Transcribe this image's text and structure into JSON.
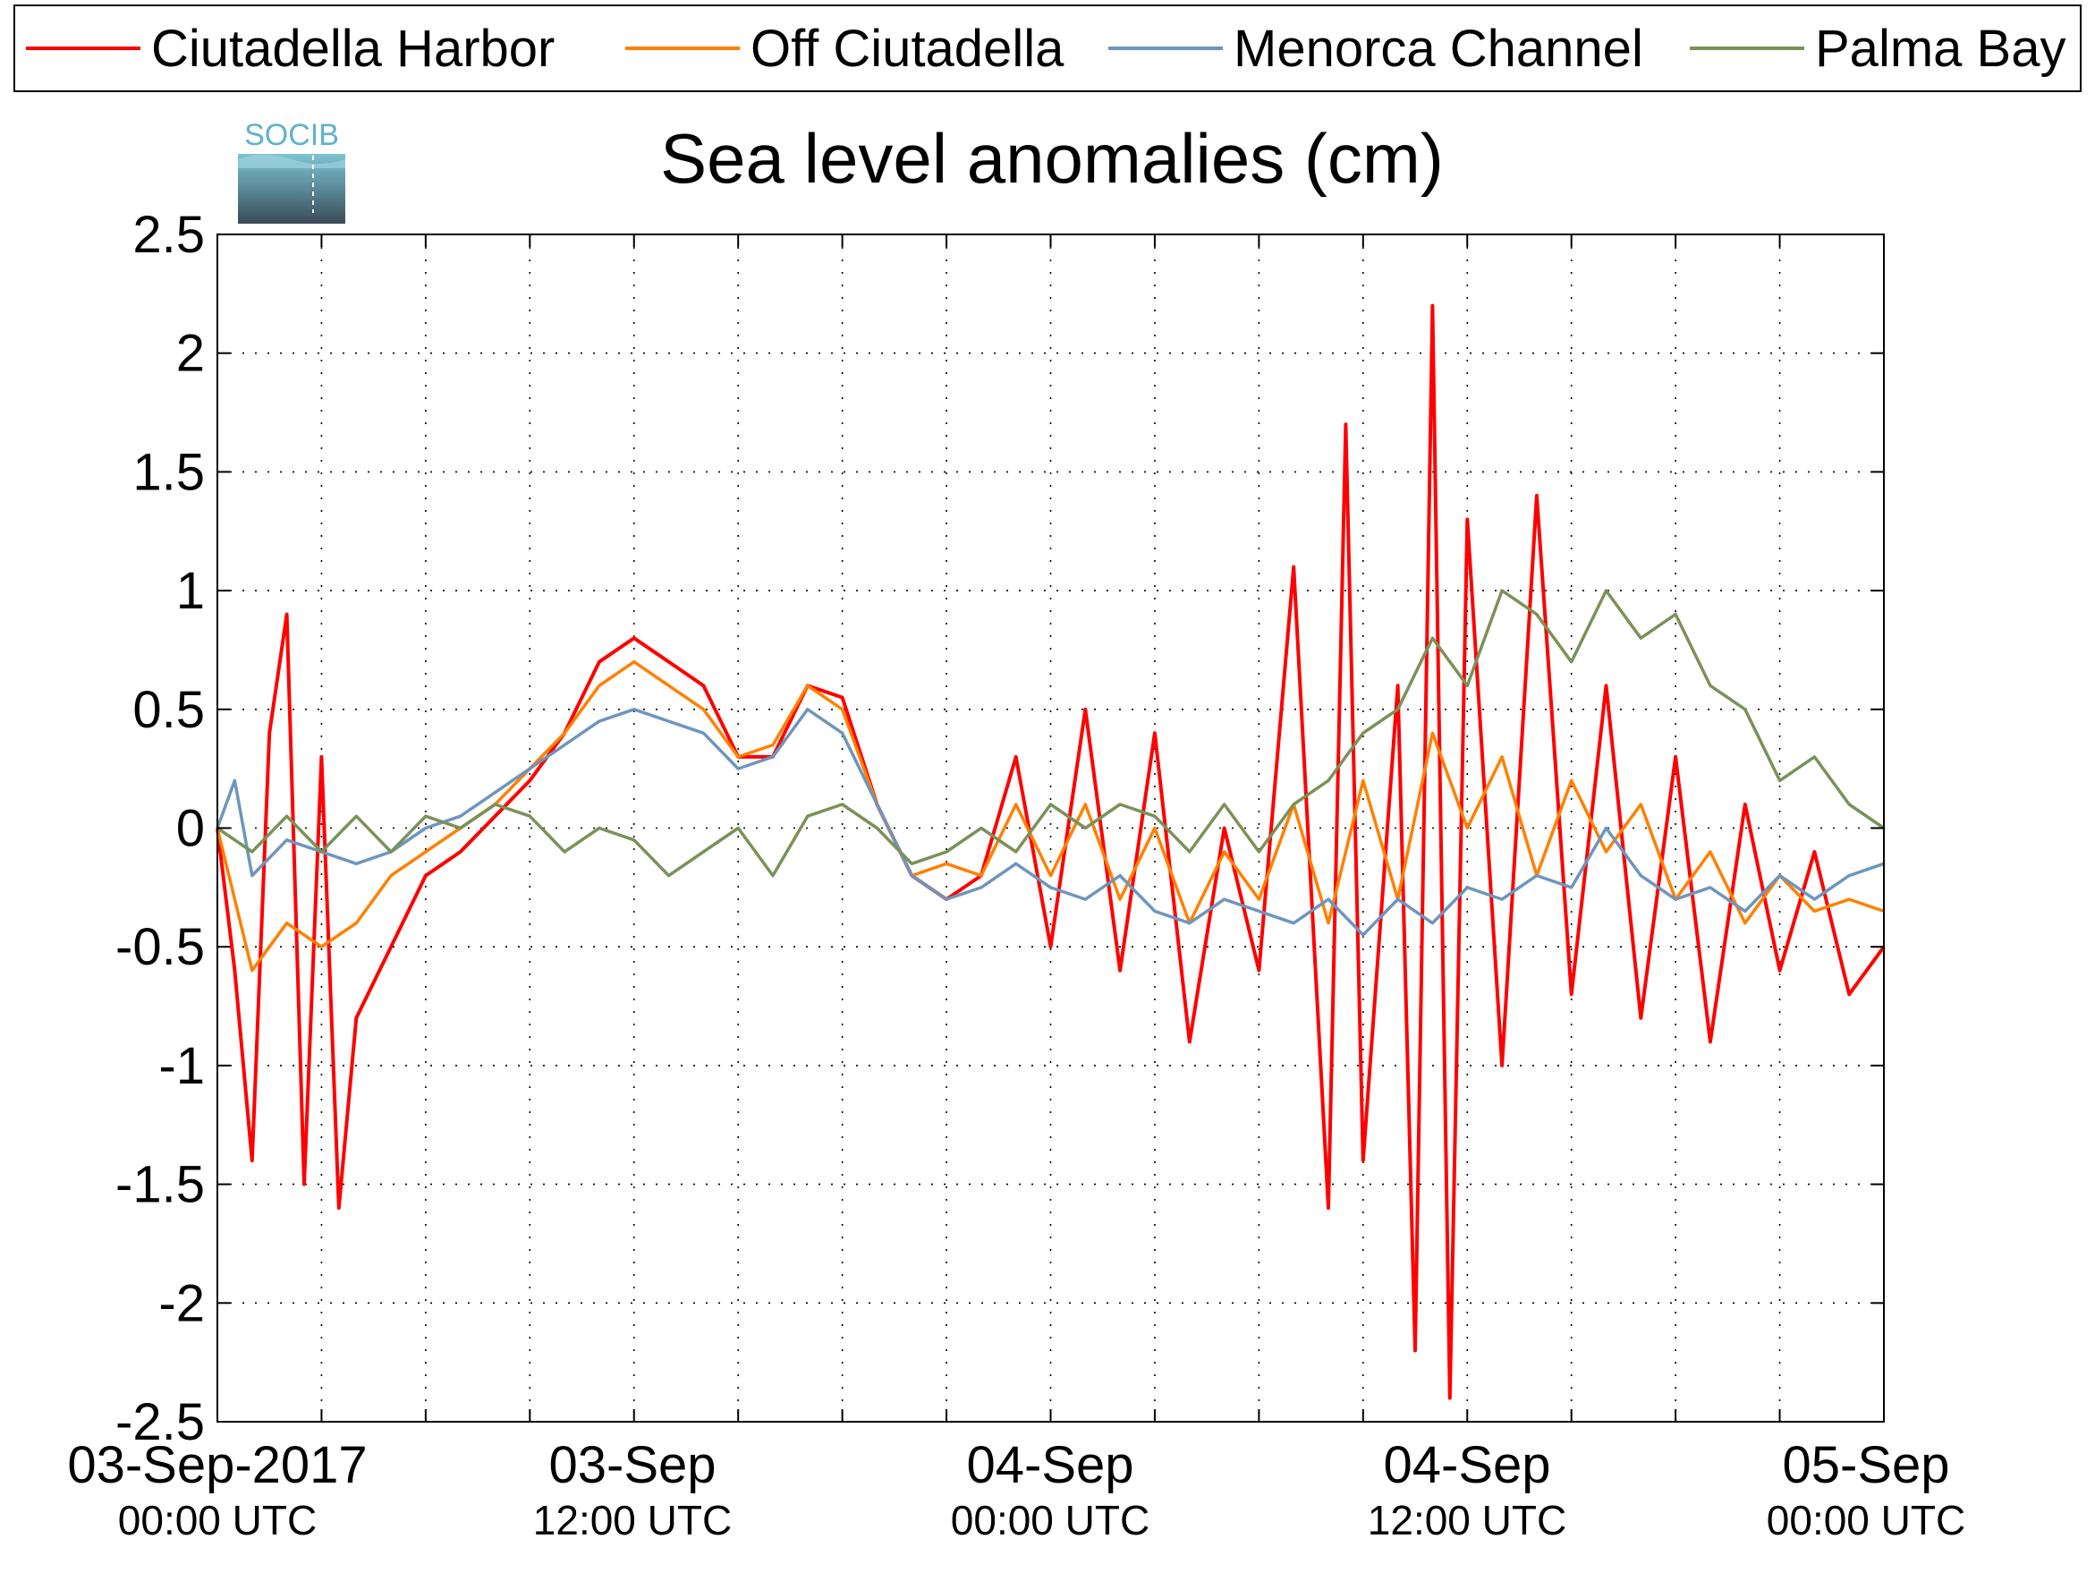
{
  "logo": {
    "text": "SOCIB",
    "icon": "socib-logo"
  },
  "colors": {
    "Ciutadella Harbor": "#ff0000",
    "Off Ciutadella": "#ff8000",
    "Menorca Channel": "#6e95bd",
    "Palma Bay": "#7b9158"
  },
  "chart_data": {
    "type": "line",
    "title": "Sea level anomalies (cm)",
    "xlabel": "",
    "ylabel": "",
    "ylim": [
      -2.5,
      2.5
    ],
    "xlim": [
      "2017-09-03 00:00",
      "2017-09-05 00:00"
    ],
    "ytick_labels": [
      "2.5",
      "2",
      "1.5",
      "1",
      "0.5",
      "0",
      "-0.5",
      "-1",
      "-1.5",
      "-2",
      "-2.5"
    ],
    "xtick_labels": [
      {
        "main": "03-Sep-2017",
        "sub": "00:00 UTC"
      },
      {
        "main": "03-Sep",
        "sub": "12:00 UTC"
      },
      {
        "main": "04-Sep",
        "sub": "00:00 UTC"
      },
      {
        "main": "04-Sep",
        "sub": "12:00 UTC"
      },
      {
        "main": "05-Sep",
        "sub": "00:00 UTC"
      }
    ],
    "grid": true,
    "legend_position": "top",
    "series": [
      {
        "name": "Ciutadella Harbor",
        "color": "#ff0000",
        "points": [
          [
            "2017-09-03 00:00",
            0.0
          ],
          [
            "2017-09-03 00:30",
            -0.6
          ],
          [
            "2017-09-03 01:00",
            -1.4
          ],
          [
            "2017-09-03 01:30",
            0.4
          ],
          [
            "2017-09-03 02:00",
            0.9
          ],
          [
            "2017-09-03 02:30",
            -1.5
          ],
          [
            "2017-09-03 03:00",
            0.3
          ],
          [
            "2017-09-03 03:30",
            -1.6
          ],
          [
            "2017-09-03 04:00",
            -0.8
          ],
          [
            "2017-09-03 05:00",
            -0.5
          ],
          [
            "2017-09-03 06:00",
            -0.2
          ],
          [
            "2017-09-03 07:00",
            -0.1
          ],
          [
            "2017-09-03 08:00",
            0.05
          ],
          [
            "2017-09-03 09:00",
            0.2
          ],
          [
            "2017-09-03 10:00",
            0.4
          ],
          [
            "2017-09-03 11:00",
            0.7
          ],
          [
            "2017-09-03 12:00",
            0.8
          ],
          [
            "2017-09-03 13:00",
            0.7
          ],
          [
            "2017-09-03 14:00",
            0.6
          ],
          [
            "2017-09-03 15:00",
            0.3
          ],
          [
            "2017-09-03 16:00",
            0.3
          ],
          [
            "2017-09-03 17:00",
            0.6
          ],
          [
            "2017-09-03 18:00",
            0.55
          ],
          [
            "2017-09-03 19:00",
            0.1
          ],
          [
            "2017-09-03 20:00",
            -0.2
          ],
          [
            "2017-09-03 21:00",
            -0.3
          ],
          [
            "2017-09-03 22:00",
            -0.2
          ],
          [
            "2017-09-03 23:00",
            0.3
          ],
          [
            "2017-09-04 00:00",
            -0.5
          ],
          [
            "2017-09-04 01:00",
            0.5
          ],
          [
            "2017-09-04 02:00",
            -0.6
          ],
          [
            "2017-09-04 03:00",
            0.4
          ],
          [
            "2017-09-04 04:00",
            -0.9
          ],
          [
            "2017-09-04 05:00",
            0.0
          ],
          [
            "2017-09-04 06:00",
            -0.6
          ],
          [
            "2017-09-04 07:00",
            1.1
          ],
          [
            "2017-09-04 08:00",
            -1.6
          ],
          [
            "2017-09-04 08:30",
            1.7
          ],
          [
            "2017-09-04 09:00",
            -1.4
          ],
          [
            "2017-09-04 10:00",
            0.6
          ],
          [
            "2017-09-04 10:30",
            -2.2
          ],
          [
            "2017-09-04 11:00",
            2.2
          ],
          [
            "2017-09-04 11:30",
            -2.4
          ],
          [
            "2017-09-04 12:00",
            1.3
          ],
          [
            "2017-09-04 13:00",
            -1.0
          ],
          [
            "2017-09-04 14:00",
            1.4
          ],
          [
            "2017-09-04 15:00",
            -0.7
          ],
          [
            "2017-09-04 16:00",
            0.6
          ],
          [
            "2017-09-04 17:00",
            -0.8
          ],
          [
            "2017-09-04 18:00",
            0.3
          ],
          [
            "2017-09-04 19:00",
            -0.9
          ],
          [
            "2017-09-04 20:00",
            0.1
          ],
          [
            "2017-09-04 21:00",
            -0.6
          ],
          [
            "2017-09-04 22:00",
            -0.1
          ],
          [
            "2017-09-04 23:00",
            -0.7
          ],
          [
            "2017-09-05 00:00",
            -0.5
          ]
        ]
      },
      {
        "name": "Off Ciutadella",
        "color": "#ff8000",
        "points": [
          [
            "2017-09-03 00:00",
            0.0
          ],
          [
            "2017-09-03 01:00",
            -0.6
          ],
          [
            "2017-09-03 02:00",
            -0.4
          ],
          [
            "2017-09-03 03:00",
            -0.5
          ],
          [
            "2017-09-03 04:00",
            -0.4
          ],
          [
            "2017-09-03 05:00",
            -0.2
          ],
          [
            "2017-09-03 06:00",
            -0.1
          ],
          [
            "2017-09-03 07:00",
            0.0
          ],
          [
            "2017-09-03 08:00",
            0.1
          ],
          [
            "2017-09-03 09:00",
            0.25
          ],
          [
            "2017-09-03 10:00",
            0.4
          ],
          [
            "2017-09-03 11:00",
            0.6
          ],
          [
            "2017-09-03 12:00",
            0.7
          ],
          [
            "2017-09-03 13:00",
            0.6
          ],
          [
            "2017-09-03 14:00",
            0.5
          ],
          [
            "2017-09-03 15:00",
            0.3
          ],
          [
            "2017-09-03 16:00",
            0.35
          ],
          [
            "2017-09-03 17:00",
            0.6
          ],
          [
            "2017-09-03 18:00",
            0.5
          ],
          [
            "2017-09-03 19:00",
            0.1
          ],
          [
            "2017-09-03 20:00",
            -0.2
          ],
          [
            "2017-09-03 21:00",
            -0.15
          ],
          [
            "2017-09-03 22:00",
            -0.2
          ],
          [
            "2017-09-03 23:00",
            0.1
          ],
          [
            "2017-09-04 00:00",
            -0.2
          ],
          [
            "2017-09-04 01:00",
            0.1
          ],
          [
            "2017-09-04 02:00",
            -0.3
          ],
          [
            "2017-09-04 03:00",
            0.0
          ],
          [
            "2017-09-04 04:00",
            -0.4
          ],
          [
            "2017-09-04 05:00",
            -0.1
          ],
          [
            "2017-09-04 06:00",
            -0.3
          ],
          [
            "2017-09-04 07:00",
            0.1
          ],
          [
            "2017-09-04 08:00",
            -0.4
          ],
          [
            "2017-09-04 09:00",
            0.2
          ],
          [
            "2017-09-04 10:00",
            -0.3
          ],
          [
            "2017-09-04 11:00",
            0.4
          ],
          [
            "2017-09-04 12:00",
            0.0
          ],
          [
            "2017-09-04 13:00",
            0.3
          ],
          [
            "2017-09-04 14:00",
            -0.2
          ],
          [
            "2017-09-04 15:00",
            0.2
          ],
          [
            "2017-09-04 16:00",
            -0.1
          ],
          [
            "2017-09-04 17:00",
            0.1
          ],
          [
            "2017-09-04 18:00",
            -0.3
          ],
          [
            "2017-09-04 19:00",
            -0.1
          ],
          [
            "2017-09-04 20:00",
            -0.4
          ],
          [
            "2017-09-04 21:00",
            -0.2
          ],
          [
            "2017-09-04 22:00",
            -0.35
          ],
          [
            "2017-09-04 23:00",
            -0.3
          ],
          [
            "2017-09-05 00:00",
            -0.35
          ]
        ]
      },
      {
        "name": "Menorca Channel",
        "color": "#6e95bd",
        "points": [
          [
            "2017-09-03 00:00",
            0.0
          ],
          [
            "2017-09-03 00:30",
            0.2
          ],
          [
            "2017-09-03 01:00",
            -0.2
          ],
          [
            "2017-09-03 02:00",
            -0.05
          ],
          [
            "2017-09-03 03:00",
            -0.1
          ],
          [
            "2017-09-03 04:00",
            -0.15
          ],
          [
            "2017-09-03 05:00",
            -0.1
          ],
          [
            "2017-09-03 06:00",
            0.0
          ],
          [
            "2017-09-03 07:00",
            0.05
          ],
          [
            "2017-09-03 08:00",
            0.15
          ],
          [
            "2017-09-03 09:00",
            0.25
          ],
          [
            "2017-09-03 10:00",
            0.35
          ],
          [
            "2017-09-03 11:00",
            0.45
          ],
          [
            "2017-09-03 12:00",
            0.5
          ],
          [
            "2017-09-03 13:00",
            0.45
          ],
          [
            "2017-09-03 14:00",
            0.4
          ],
          [
            "2017-09-03 15:00",
            0.25
          ],
          [
            "2017-09-03 16:00",
            0.3
          ],
          [
            "2017-09-03 17:00",
            0.5
          ],
          [
            "2017-09-03 18:00",
            0.4
          ],
          [
            "2017-09-03 19:00",
            0.1
          ],
          [
            "2017-09-03 20:00",
            -0.2
          ],
          [
            "2017-09-03 21:00",
            -0.3
          ],
          [
            "2017-09-03 22:00",
            -0.25
          ],
          [
            "2017-09-03 23:00",
            -0.15
          ],
          [
            "2017-09-04 00:00",
            -0.25
          ],
          [
            "2017-09-04 01:00",
            -0.3
          ],
          [
            "2017-09-04 02:00",
            -0.2
          ],
          [
            "2017-09-04 03:00",
            -0.35
          ],
          [
            "2017-09-04 04:00",
            -0.4
          ],
          [
            "2017-09-04 05:00",
            -0.3
          ],
          [
            "2017-09-04 06:00",
            -0.35
          ],
          [
            "2017-09-04 07:00",
            -0.4
          ],
          [
            "2017-09-04 08:00",
            -0.3
          ],
          [
            "2017-09-04 09:00",
            -0.45
          ],
          [
            "2017-09-04 10:00",
            -0.3
          ],
          [
            "2017-09-04 11:00",
            -0.4
          ],
          [
            "2017-09-04 12:00",
            -0.25
          ],
          [
            "2017-09-04 13:00",
            -0.3
          ],
          [
            "2017-09-04 14:00",
            -0.2
          ],
          [
            "2017-09-04 15:00",
            -0.25
          ],
          [
            "2017-09-04 16:00",
            0.0
          ],
          [
            "2017-09-04 17:00",
            -0.2
          ],
          [
            "2017-09-04 18:00",
            -0.3
          ],
          [
            "2017-09-04 19:00",
            -0.25
          ],
          [
            "2017-09-04 20:00",
            -0.35
          ],
          [
            "2017-09-04 21:00",
            -0.2
          ],
          [
            "2017-09-04 22:00",
            -0.3
          ],
          [
            "2017-09-04 23:00",
            -0.2
          ],
          [
            "2017-09-05 00:00",
            -0.15
          ]
        ]
      },
      {
        "name": "Palma Bay",
        "color": "#7b9158",
        "points": [
          [
            "2017-09-03 00:00",
            0.0
          ],
          [
            "2017-09-03 01:00",
            -0.1
          ],
          [
            "2017-09-03 02:00",
            0.05
          ],
          [
            "2017-09-03 03:00",
            -0.1
          ],
          [
            "2017-09-03 04:00",
            0.05
          ],
          [
            "2017-09-03 05:00",
            -0.1
          ],
          [
            "2017-09-03 06:00",
            0.05
          ],
          [
            "2017-09-03 07:00",
            0.0
          ],
          [
            "2017-09-03 08:00",
            0.1
          ],
          [
            "2017-09-03 09:00",
            0.05
          ],
          [
            "2017-09-03 10:00",
            -0.1
          ],
          [
            "2017-09-03 11:00",
            0.0
          ],
          [
            "2017-09-03 12:00",
            -0.05
          ],
          [
            "2017-09-03 13:00",
            -0.2
          ],
          [
            "2017-09-03 14:00",
            -0.1
          ],
          [
            "2017-09-03 15:00",
            0.0
          ],
          [
            "2017-09-03 16:00",
            -0.2
          ],
          [
            "2017-09-03 17:00",
            0.05
          ],
          [
            "2017-09-03 18:00",
            0.1
          ],
          [
            "2017-09-03 19:00",
            0.0
          ],
          [
            "2017-09-03 20:00",
            -0.15
          ],
          [
            "2017-09-03 21:00",
            -0.1
          ],
          [
            "2017-09-03 22:00",
            0.0
          ],
          [
            "2017-09-03 23:00",
            -0.1
          ],
          [
            "2017-09-04 00:00",
            0.1
          ],
          [
            "2017-09-04 01:00",
            0.0
          ],
          [
            "2017-09-04 02:00",
            0.1
          ],
          [
            "2017-09-04 03:00",
            0.05
          ],
          [
            "2017-09-04 04:00",
            -0.1
          ],
          [
            "2017-09-04 05:00",
            0.1
          ],
          [
            "2017-09-04 06:00",
            -0.1
          ],
          [
            "2017-09-04 07:00",
            0.1
          ],
          [
            "2017-09-04 08:00",
            0.2
          ],
          [
            "2017-09-04 09:00",
            0.4
          ],
          [
            "2017-09-04 10:00",
            0.5
          ],
          [
            "2017-09-04 11:00",
            0.8
          ],
          [
            "2017-09-04 12:00",
            0.6
          ],
          [
            "2017-09-04 13:00",
            1.0
          ],
          [
            "2017-09-04 14:00",
            0.9
          ],
          [
            "2017-09-04 15:00",
            0.7
          ],
          [
            "2017-09-04 16:00",
            1.0
          ],
          [
            "2017-09-04 17:00",
            0.8
          ],
          [
            "2017-09-04 18:00",
            0.9
          ],
          [
            "2017-09-04 19:00",
            0.6
          ],
          [
            "2017-09-04 20:00",
            0.5
          ],
          [
            "2017-09-04 21:00",
            0.2
          ],
          [
            "2017-09-04 22:00",
            0.3
          ],
          [
            "2017-09-04 23:00",
            0.1
          ],
          [
            "2017-09-05 00:00",
            0.0
          ]
        ]
      }
    ]
  }
}
